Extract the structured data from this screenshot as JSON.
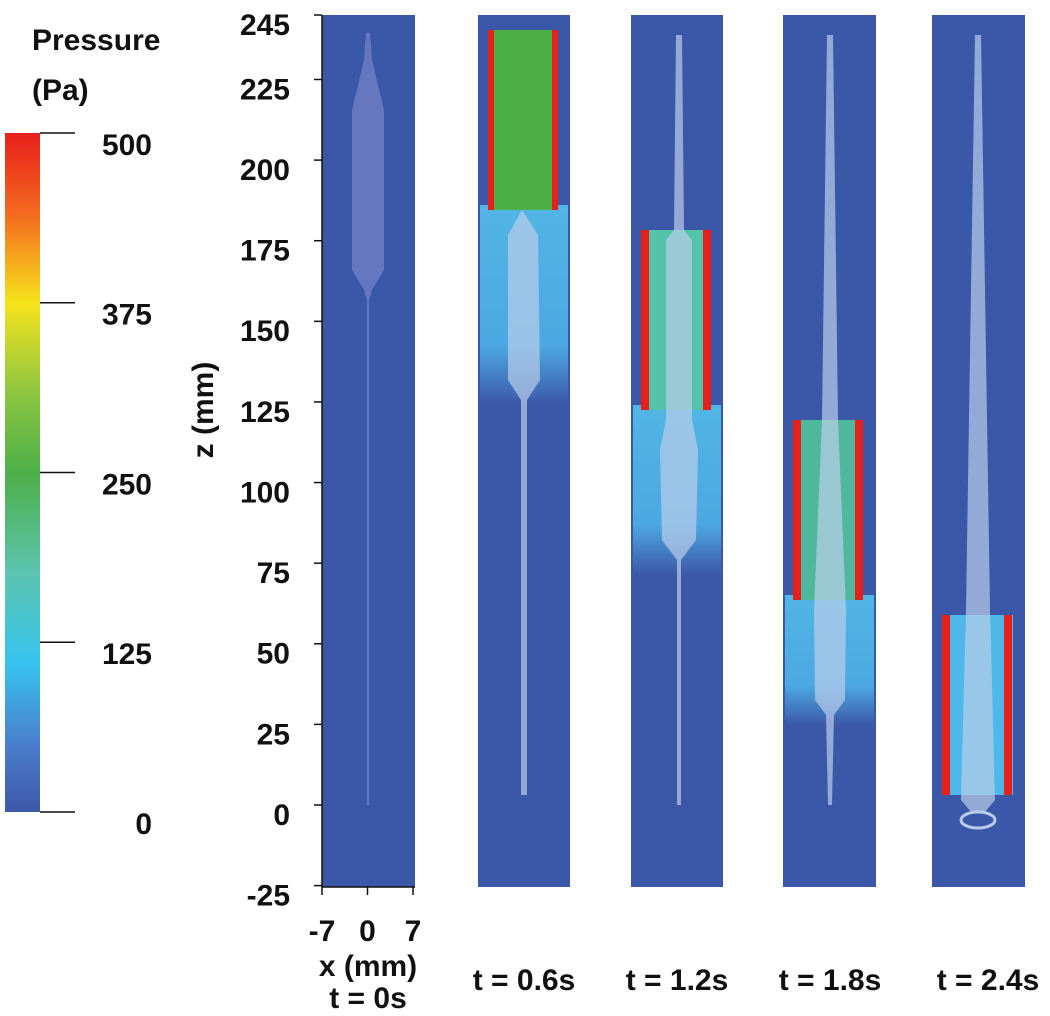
{
  "colorbar": {
    "title_lines": [
      "Pressure",
      "(Pa)"
    ],
    "lim": [
      0,
      500
    ],
    "ticks": [
      0,
      125,
      250,
      375,
      500
    ]
  },
  "z_axis": {
    "label": "z (mm)",
    "lim": [
      -25,
      245
    ],
    "ticks": [
      -25,
      0,
      25,
      50,
      75,
      100,
      125,
      150,
      175,
      200,
      225,
      245
    ]
  },
  "x_axis": {
    "label": "x (mm)",
    "lim": [
      -7,
      7
    ],
    "ticks": [
      -7,
      0,
      7
    ]
  },
  "panels": [
    {
      "label": "t = 0s"
    },
    {
      "label": "t = 0.6s"
    },
    {
      "label": "t = 1.2s"
    },
    {
      "label": "t = 1.8s"
    },
    {
      "label": "t = 2.4s"
    }
  ]
}
